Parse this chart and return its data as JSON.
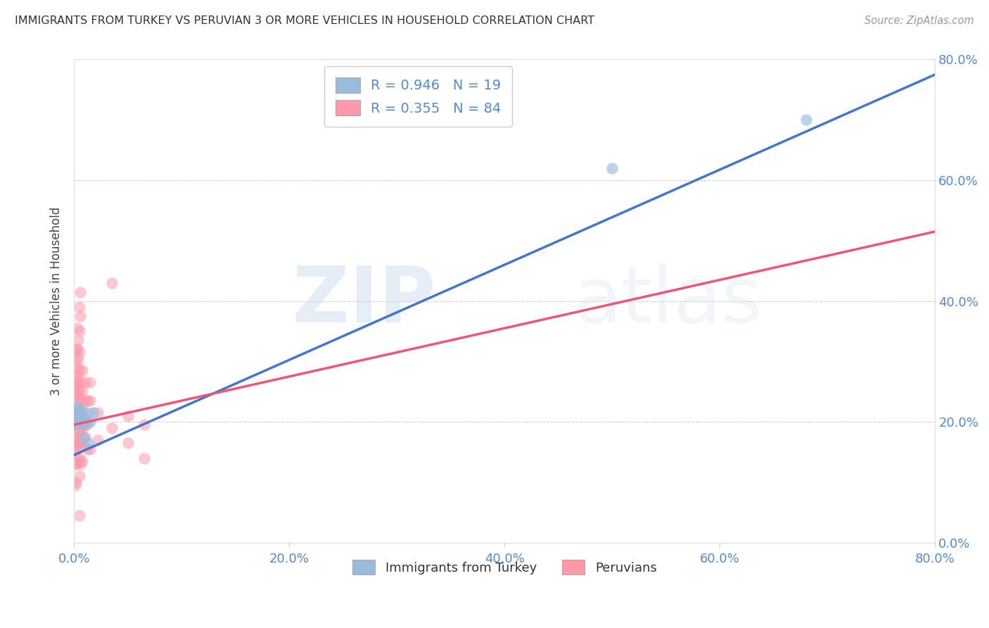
{
  "title": "IMMIGRANTS FROM TURKEY VS PERUVIAN 3 OR MORE VEHICLES IN HOUSEHOLD CORRELATION CHART",
  "source": "Source: ZipAtlas.com",
  "ylabel": "3 or more Vehicles in Household",
  "R_blue": 0.946,
  "N_blue": 19,
  "R_pink": 0.355,
  "N_pink": 84,
  "x_min": 0.0,
  "x_max": 0.8,
  "y_min": 0.0,
  "y_max": 0.8,
  "blue_color": "#99BBDD",
  "pink_color": "#FF99AA",
  "blue_line_color": "#4477CC",
  "pink_line_color": "#EE5577",
  "legend_label_blue": "Immigrants from Turkey",
  "legend_label_pink": "Peruvians",
  "blue_scatter": [
    [
      0.001,
      0.215
    ],
    [
      0.002,
      0.205
    ],
    [
      0.002,
      0.195
    ],
    [
      0.003,
      0.215
    ],
    [
      0.003,
      0.225
    ],
    [
      0.004,
      0.21
    ],
    [
      0.005,
      0.22
    ],
    [
      0.006,
      0.205
    ],
    [
      0.007,
      0.215
    ],
    [
      0.008,
      0.21
    ],
    [
      0.009,
      0.175
    ],
    [
      0.01,
      0.195
    ],
    [
      0.011,
      0.2
    ],
    [
      0.012,
      0.215
    ],
    [
      0.013,
      0.165
    ],
    [
      0.015,
      0.2
    ],
    [
      0.018,
      0.215
    ],
    [
      0.5,
      0.62
    ],
    [
      0.68,
      0.7
    ]
  ],
  "pink_scatter": [
    [
      0.001,
      0.265
    ],
    [
      0.001,
      0.245
    ],
    [
      0.001,
      0.22
    ],
    [
      0.001,
      0.215
    ],
    [
      0.001,
      0.205
    ],
    [
      0.001,
      0.195
    ],
    [
      0.001,
      0.185
    ],
    [
      0.001,
      0.175
    ],
    [
      0.001,
      0.16
    ],
    [
      0.001,
      0.145
    ],
    [
      0.001,
      0.13
    ],
    [
      0.001,
      0.095
    ],
    [
      0.002,
      0.32
    ],
    [
      0.002,
      0.3
    ],
    [
      0.002,
      0.28
    ],
    [
      0.002,
      0.26
    ],
    [
      0.002,
      0.24
    ],
    [
      0.002,
      0.22
    ],
    [
      0.002,
      0.21
    ],
    [
      0.002,
      0.195
    ],
    [
      0.002,
      0.175
    ],
    [
      0.002,
      0.155
    ],
    [
      0.002,
      0.13
    ],
    [
      0.002,
      0.1
    ],
    [
      0.003,
      0.355
    ],
    [
      0.003,
      0.32
    ],
    [
      0.003,
      0.29
    ],
    [
      0.003,
      0.265
    ],
    [
      0.003,
      0.245
    ],
    [
      0.003,
      0.22
    ],
    [
      0.003,
      0.195
    ],
    [
      0.003,
      0.165
    ],
    [
      0.004,
      0.335
    ],
    [
      0.004,
      0.305
    ],
    [
      0.004,
      0.275
    ],
    [
      0.004,
      0.25
    ],
    [
      0.004,
      0.225
    ],
    [
      0.004,
      0.2
    ],
    [
      0.004,
      0.17
    ],
    [
      0.004,
      0.135
    ],
    [
      0.005,
      0.39
    ],
    [
      0.005,
      0.35
    ],
    [
      0.005,
      0.315
    ],
    [
      0.005,
      0.285
    ],
    [
      0.005,
      0.255
    ],
    [
      0.005,
      0.23
    ],
    [
      0.005,
      0.21
    ],
    [
      0.005,
      0.185
    ],
    [
      0.005,
      0.165
    ],
    [
      0.005,
      0.14
    ],
    [
      0.005,
      0.11
    ],
    [
      0.005,
      0.045
    ],
    [
      0.006,
      0.415
    ],
    [
      0.006,
      0.375
    ],
    [
      0.006,
      0.265
    ],
    [
      0.006,
      0.24
    ],
    [
      0.006,
      0.215
    ],
    [
      0.006,
      0.185
    ],
    [
      0.006,
      0.16
    ],
    [
      0.006,
      0.13
    ],
    [
      0.008,
      0.285
    ],
    [
      0.008,
      0.25
    ],
    [
      0.008,
      0.22
    ],
    [
      0.008,
      0.19
    ],
    [
      0.008,
      0.165
    ],
    [
      0.008,
      0.135
    ],
    [
      0.01,
      0.265
    ],
    [
      0.01,
      0.235
    ],
    [
      0.01,
      0.205
    ],
    [
      0.01,
      0.175
    ],
    [
      0.012,
      0.235
    ],
    [
      0.012,
      0.195
    ],
    [
      0.012,
      0.155
    ],
    [
      0.015,
      0.265
    ],
    [
      0.015,
      0.235
    ],
    [
      0.015,
      0.155
    ],
    [
      0.022,
      0.215
    ],
    [
      0.022,
      0.17
    ],
    [
      0.035,
      0.43
    ],
    [
      0.035,
      0.19
    ],
    [
      0.05,
      0.21
    ],
    [
      0.05,
      0.165
    ],
    [
      0.065,
      0.195
    ],
    [
      0.065,
      0.14
    ]
  ],
  "blue_line_x0": 0.0,
  "blue_line_y0": 0.145,
  "blue_line_x1": 0.8,
  "blue_line_y1": 0.775,
  "pink_line_x0": 0.0,
  "pink_line_y0": 0.195,
  "pink_line_x1": 0.8,
  "pink_line_y1": 0.515,
  "grid_color": "#CCCCCC",
  "title_color": "#333333",
  "axis_label_color": "#5588CC",
  "tick_label_color": "#5588CC",
  "background_color": "#FFFFFF"
}
